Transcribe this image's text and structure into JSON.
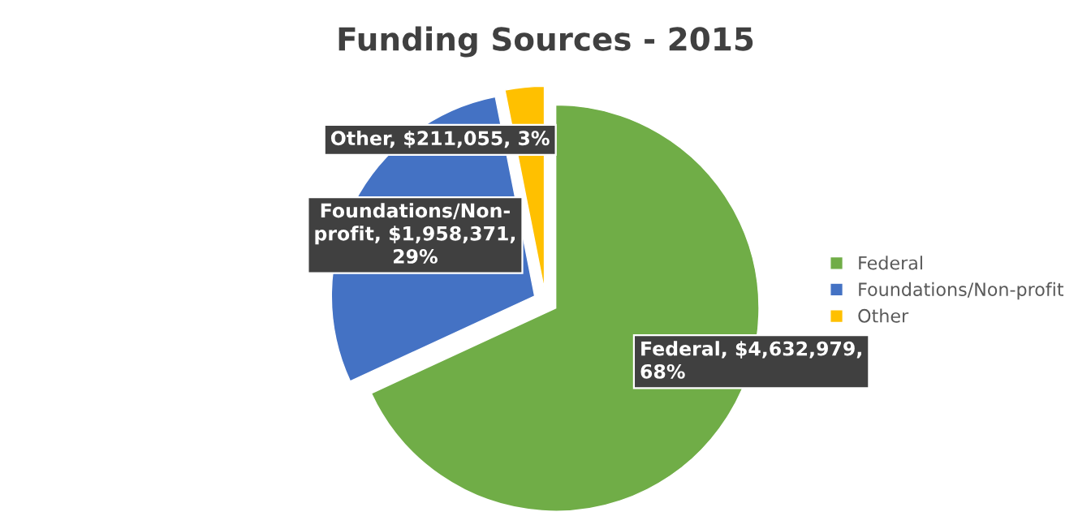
{
  "chart_data": {
    "type": "pie",
    "title": "Funding Sources - 2015",
    "categories": [
      "Federal",
      "Foundations/Non-profit",
      "Other"
    ],
    "values": [
      4632979,
      1958371,
      211055
    ],
    "colors": [
      "#70ad47",
      "#4472c4",
      "#ffc000"
    ],
    "value_labels": [
      "Federal, $4,632,979,\n68%",
      "Foundations/Non-\nprofit, $1,958,371,\n29%",
      "Other, $211,055, 3%"
    ],
    "legend": "right"
  }
}
